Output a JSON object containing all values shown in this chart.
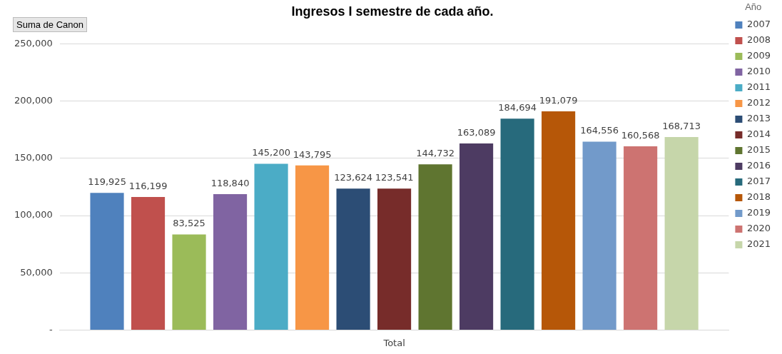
{
  "chart_data": {
    "type": "bar",
    "title": "Ingresos I semestre de cada año.",
    "annotations": [
      "Suma de Canon"
    ],
    "legend_title": "Año",
    "categories": [
      "Total"
    ],
    "series": [
      {
        "name": "2007",
        "color": "#4f81bd",
        "values": [
          119925
        ],
        "value_labels": [
          "119,925"
        ]
      },
      {
        "name": "2008",
        "color": "#c0504d",
        "values": [
          116199
        ],
        "value_labels": [
          "116,199"
        ]
      },
      {
        "name": "2009",
        "color": "#9bbb59",
        "values": [
          83525
        ],
        "value_labels": [
          "83,525"
        ]
      },
      {
        "name": "2010",
        "color": "#8064a2",
        "values": [
          118840
        ],
        "value_labels": [
          "118,840"
        ]
      },
      {
        "name": "2011",
        "color": "#4bacc6",
        "values": [
          145200
        ],
        "value_labels": [
          "145,200"
        ]
      },
      {
        "name": "2012",
        "color": "#f79646",
        "values": [
          143795
        ],
        "value_labels": [
          "143,795"
        ]
      },
      {
        "name": "2013",
        "color": "#2c4d75",
        "values": [
          123624
        ],
        "value_labels": [
          "123,624"
        ]
      },
      {
        "name": "2014",
        "color": "#772c2a",
        "values": [
          123541
        ],
        "value_labels": [
          "123,541"
        ]
      },
      {
        "name": "2015",
        "color": "#5f7530",
        "values": [
          144732
        ],
        "value_labels": [
          "144,732"
        ]
      },
      {
        "name": "2016",
        "color": "#4d3b62",
        "values": [
          163089
        ],
        "value_labels": [
          "163,089"
        ]
      },
      {
        "name": "2017",
        "color": "#276a7c",
        "values": [
          184694
        ],
        "value_labels": [
          "184,694"
        ]
      },
      {
        "name": "2018",
        "color": "#b65708",
        "values": [
          191079
        ],
        "value_labels": [
          "191,079"
        ]
      },
      {
        "name": "2019",
        "color": "#729aca",
        "values": [
          164556
        ],
        "value_labels": [
          "164,556"
        ]
      },
      {
        "name": "2020",
        "color": "#cd7371",
        "values": [
          160568
        ],
        "value_labels": [
          "160,568"
        ]
      },
      {
        "name": "2021",
        "color": "#c6d6aa",
        "values": [
          168713
        ],
        "value_labels": [
          "168,713"
        ]
      }
    ],
    "ylim": [
      0,
      250000
    ],
    "yticks": [
      {
        "value": 0,
        "label": "-"
      },
      {
        "value": 50000,
        "label": "50,000"
      },
      {
        "value": 100000,
        "label": "100,000"
      },
      {
        "value": 150000,
        "label": "150,000"
      },
      {
        "value": 200000,
        "label": "200,000"
      },
      {
        "value": 250000,
        "label": "250,000"
      }
    ],
    "grid": "y",
    "legend": "right"
  }
}
